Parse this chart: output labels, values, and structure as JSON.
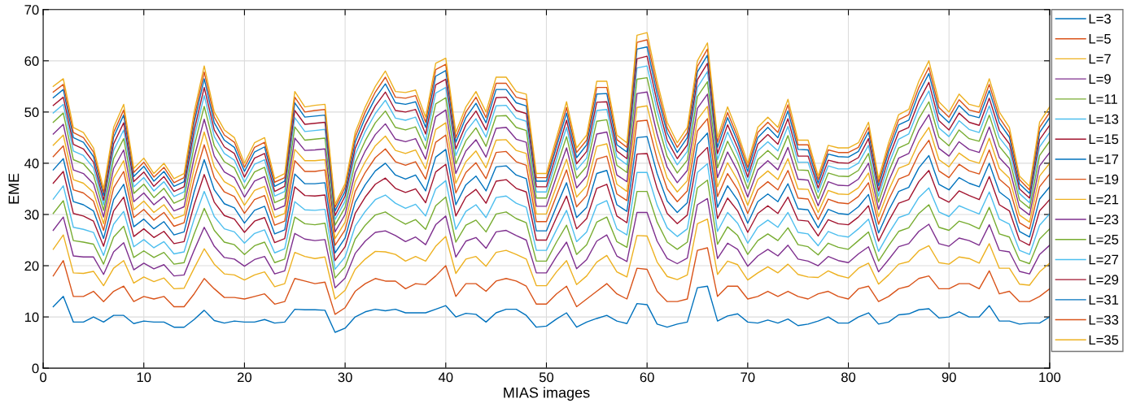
{
  "chart_data": {
    "type": "line",
    "xlabel": "MIAS images",
    "ylabel": "EME",
    "x": [
      1,
      2,
      3,
      4,
      5,
      6,
      7,
      8,
      9,
      10,
      11,
      12,
      13,
      14,
      15,
      16,
      17,
      18,
      19,
      20,
      21,
      22,
      23,
      24,
      25,
      26,
      27,
      28,
      29,
      30,
      31,
      32,
      33,
      34,
      35,
      36,
      37,
      38,
      39,
      40,
      41,
      42,
      43,
      44,
      45,
      46,
      47,
      48,
      49,
      50,
      51,
      52,
      53,
      54,
      55,
      56,
      57,
      58,
      59,
      60,
      61,
      62,
      63,
      64,
      65,
      66,
      67,
      68,
      69,
      70,
      71,
      72,
      73,
      74,
      75,
      76,
      77,
      78,
      79,
      80,
      81,
      82,
      83,
      84,
      85,
      86,
      87,
      88,
      89,
      90,
      91,
      92,
      93,
      94,
      95,
      96,
      97,
      98,
      99,
      100
    ],
    "xlim": [
      0,
      100
    ],
    "xticks": [
      0,
      10,
      20,
      30,
      40,
      50,
      60,
      70,
      80,
      90,
      100
    ],
    "ylim": [
      0,
      70
    ],
    "yticks": [
      0,
      10,
      20,
      30,
      40,
      50,
      60,
      70
    ],
    "grid": true,
    "legend": "right",
    "marker": "none",
    "line_style": "solid",
    "series": [
      {
        "name": "L=3",
        "color": "#0072bd",
        "values": [
          12,
          14,
          9,
          9,
          10,
          9,
          10.3,
          10.3,
          8.7,
          9.2,
          9,
          9,
          8,
          8,
          9.5,
          11.3,
          9.3,
          8.8,
          9.2,
          9,
          9,
          9.5,
          8.8,
          9,
          11.5,
          11.4,
          11.4,
          11.3,
          7,
          7.8,
          10,
          11,
          11.5,
          11.2,
          11.5,
          10.8,
          10.8,
          10.8,
          11.5,
          12.2,
          10,
          10.7,
          10.5,
          9,
          10.8,
          11.5,
          11.5,
          10.3,
          8,
          8.2,
          9.6,
          10.8,
          8,
          9,
          9.7,
          10.3,
          9.2,
          8.7,
          12.6,
          12.4,
          8.6,
          8,
          8.6,
          9,
          15.7,
          16,
          9.2,
          10.2,
          10.6,
          9,
          8.8,
          9.4,
          8.8,
          9.6,
          8.3,
          8.6,
          9.2,
          10,
          8.8,
          8.8,
          10,
          10.8,
          8.6,
          9,
          10.4,
          10.6,
          11.4,
          11.6,
          9.8,
          10,
          11,
          10,
          10,
          12.2,
          9.2,
          9.2,
          8.6,
          8.8,
          8.8,
          10
        ]
      },
      {
        "name": "L=5",
        "color": "#d95319",
        "values": [
          18,
          21,
          14,
          14,
          15,
          13,
          15,
          16,
          13,
          14,
          13.5,
          14,
          12,
          12,
          14.5,
          17.5,
          15.5,
          13.8,
          13.8,
          13.5,
          14,
          14.5,
          12.5,
          13,
          17.5,
          17,
          16.5,
          16.8,
          10.5,
          11.8,
          15,
          16.5,
          17.5,
          17,
          17,
          15.5,
          16.5,
          16.3,
          18,
          20,
          14,
          16.5,
          16.5,
          15,
          17,
          17.5,
          17,
          16,
          12.5,
          12.5,
          14.5,
          16,
          12,
          13.5,
          15,
          16.5,
          14.5,
          13.5,
          19.5,
          19.3,
          15,
          13,
          13,
          13.5,
          23,
          23.5,
          14,
          16,
          16,
          13.5,
          14,
          15,
          14,
          15,
          14,
          13.5,
          14.5,
          15,
          14,
          13.5,
          15.5,
          16,
          13,
          14,
          15.5,
          16,
          17.5,
          18,
          15.5,
          15.5,
          16.5,
          16.5,
          15.5,
          19,
          14.5,
          15,
          13,
          13,
          14,
          15.5
        ]
      },
      {
        "name": "L=7",
        "color": "#edb120",
        "values": [
          23.2,
          26,
          18.6,
          18.5,
          18.9,
          16.1,
          19.5,
          21,
          16.6,
          17.8,
          16.9,
          17.6,
          15.5,
          15.6,
          19.5,
          23.3,
          20.3,
          18.4,
          18.2,
          17.2,
          18.2,
          18.8,
          15.9,
          16.5,
          22.6,
          21.8,
          21.4,
          21.7,
          13.5,
          15.2,
          19.3,
          21.3,
          22.8,
          22.7,
          22.2,
          20.9,
          21.8,
          20.9,
          23.8,
          25.7,
          18.5,
          21.3,
          21.8,
          19.9,
          22.6,
          23,
          22.2,
          21.3,
          16.1,
          16.1,
          18.8,
          21,
          16.3,
          18,
          20.7,
          22,
          18.8,
          17.8,
          25.9,
          25.8,
          20.7,
          17.9,
          17.3,
          18.2,
          28.2,
          29.1,
          18.3,
          20.9,
          20.2,
          17.2,
          18.6,
          19.8,
          18.6,
          20.3,
          18.3,
          17.8,
          17.7,
          19,
          18.1,
          17.6,
          19.5,
          20.5,
          16.4,
          18.2,
          20.3,
          20.8,
          22.9,
          23.9,
          20.6,
          20.3,
          21.7,
          21.4,
          20.5,
          24.3,
          19.5,
          19.5,
          16.4,
          16.2,
          18.8,
          20.5
        ]
      },
      {
        "name": "L=9",
        "color": "#7e2f8e",
        "values": [
          26.9,
          29.5,
          21.9,
          21.7,
          21.7,
          18.3,
          22.7,
          24.5,
          19.2,
          20.5,
          19.4,
          20.2,
          18,
          18.2,
          23,
          27.5,
          23.8,
          21.6,
          21.3,
          19.9,
          21.2,
          21.8,
          18.4,
          19,
          26.3,
          25.2,
          24.9,
          25.1,
          15.7,
          17.6,
          22.4,
          24.8,
          26.5,
          26.8,
          25.9,
          24.7,
          25.6,
          24.1,
          28,
          29.7,
          21.7,
          24.8,
          25.5,
          23.4,
          26.6,
          26.9,
          25.9,
          25,
          18.6,
          18.6,
          21.8,
          24.6,
          19.4,
          21.2,
          24.8,
          26,
          21.9,
          20.8,
          30.4,
          30.4,
          24.8,
          21.4,
          20.4,
          21.5,
          31.9,
          33.1,
          21.4,
          24.4,
          23.2,
          19.9,
          21.9,
          23.2,
          21.9,
          24,
          21.3,
          20.9,
          20,
          21.8,
          21,
          20.6,
          22.3,
          23.7,
          18.8,
          21.2,
          23.7,
          24.3,
          26.7,
          28.1,
          24.3,
          23.8,
          25.4,
          24.9,
          24,
          28,
          23,
          22.7,
          18.9,
          18.4,
          22.2,
          24
        ]
      },
      {
        "name": "L=11",
        "color": "#77ac30",
        "values": [
          30.2,
          32.7,
          24.9,
          24.6,
          24.2,
          20.3,
          25.6,
          27.7,
          21.6,
          22.9,
          21.6,
          22.6,
          20.3,
          20.6,
          26.2,
          31.2,
          26.9,
          24.6,
          24.1,
          22.2,
          23.9,
          24.6,
          20.6,
          21.3,
          29.5,
          28.2,
          28,
          28.3,
          17.6,
          19.8,
          25.2,
          27.9,
          29.9,
          30.5,
          29.2,
          28.1,
          29,
          27.1,
          31.7,
          33.4,
          24.6,
          27.9,
          28.9,
          26.6,
          30.1,
          30.5,
          29.2,
          28.4,
          20.9,
          20.9,
          24.6,
          27.9,
          22.2,
          24.1,
          28.5,
          29.5,
          24.7,
          23.6,
          34.5,
          34.5,
          28.5,
          24.6,
          23.2,
          24.6,
          35.2,
          36.7,
          24.2,
          27.6,
          25.9,
          22.2,
          24.9,
          26.2,
          24.9,
          27.4,
          24.1,
          23.7,
          22.1,
          24.4,
          23.6,
          23.2,
          24.9,
          26.6,
          20.9,
          23.9,
          26.7,
          27.4,
          30.2,
          31.9,
          27.5,
          26.9,
          28.7,
          28.1,
          27.2,
          31.4,
          26.2,
          25.6,
          21.1,
          20.4,
          25.2,
          27.2
        ]
      },
      {
        "name": "L=13",
        "color": "#4dbeee",
        "values": [
          33,
          35.6,
          27.5,
          27.1,
          26.5,
          22,
          28.1,
          30.6,
          23.7,
          25.1,
          23.5,
          24.7,
          22.3,
          22.7,
          29.1,
          34.5,
          29.6,
          27.2,
          26.6,
          24.4,
          26.3,
          27,
          22.5,
          23.3,
          32.5,
          30.9,
          30.8,
          31,
          19.3,
          21.7,
          27.7,
          30.6,
          32.9,
          33.8,
          32.2,
          31.2,
          32,
          29.7,
          35,
          36.6,
          27.1,
          30.6,
          31.9,
          29.4,
          33.3,
          33.6,
          32.2,
          31.4,
          23,
          23,
          27,
          30.8,
          24.7,
          26.6,
          31.8,
          32.7,
          27.2,
          26,
          38.2,
          38.2,
          31.8,
          27.4,
          25.7,
          27.2,
          38.2,
          39.9,
          26.7,
          30.4,
          28.3,
          24.4,
          27.5,
          28.9,
          27.5,
          30.4,
          26.5,
          26.2,
          23.9,
          26.7,
          25.9,
          25.6,
          27.2,
          29.1,
          22.8,
          26.3,
          29.4,
          30.1,
          33.3,
          35.2,
          30.5,
          29.6,
          31.7,
          30.9,
          30.1,
          34.4,
          29.1,
          28.1,
          23,
          22.2,
          27.9,
          30.1
        ]
      },
      {
        "name": "L=15",
        "color": "#a2142f",
        "values": [
          36.1,
          38.4,
          30.2,
          29.7,
          28.7,
          23.8,
          30.7,
          33.4,
          25.7,
          27.2,
          25.5,
          26.7,
          24.3,
          24.7,
          31.9,
          37.8,
          32.4,
          29.8,
          29.1,
          26.5,
          28.7,
          29.4,
          24.5,
          25.3,
          35.4,
          33.7,
          33.6,
          33.8,
          21,
          23.7,
          30.2,
          33.4,
          35.9,
          37.1,
          35.1,
          34.3,
          35,
          32.3,
          38.3,
          39.8,
          29.7,
          33.4,
          34.9,
          32.2,
          36.5,
          36.8,
          35.1,
          34.4,
          25,
          25,
          29.4,
          33.6,
          27.2,
          29.2,
          35.1,
          35.9,
          29.7,
          28.4,
          41.8,
          41.9,
          35.1,
          30.2,
          28.2,
          29.9,
          41.1,
          43.1,
          29.2,
          33.2,
          30.7,
          26.5,
          30.2,
          31.7,
          30.2,
          33.4,
          28.9,
          28.7,
          25.8,
          29,
          28.2,
          28,
          29.5,
          31.7,
          24.8,
          28.7,
          32.2,
          32.9,
          36.4,
          38.6,
          33.4,
          32.4,
          34.6,
          33.7,
          32.9,
          37.4,
          31.9,
          30.7,
          25,
          24,
          30.7,
          32.9
        ]
      },
      {
        "name": "L=17",
        "color": "#0072bd",
        "values": [
          38.7,
          40.9,
          32.5,
          31.9,
          30.7,
          25.3,
          32.9,
          35.9,
          27.6,
          29.1,
          27.2,
          28.6,
          26,
          26.6,
          34.4,
          40.7,
          34.8,
          32.1,
          31.3,
          28.3,
          30.8,
          31.6,
          26.2,
          27,
          37.9,
          36,
          36,
          36.2,
          22.5,
          25.4,
          32.4,
          35.8,
          38.5,
          40,
          37.7,
          36.9,
          37.7,
          34.6,
          41.2,
          42.7,
          31.9,
          35.8,
          37.5,
          34.6,
          39.3,
          39.5,
          37.7,
          37,
          26.8,
          26.8,
          31.6,
          36.2,
          29.4,
          31.4,
          38,
          38.6,
          31.9,
          30.6,
          45,
          45.2,
          38,
          32.6,
          30.4,
          32.3,
          43.7,
          45.9,
          31.4,
          35.6,
          32.8,
          28.3,
          32.5,
          34,
          32.5,
          36,
          31.1,
          30.9,
          27.4,
          31,
          30.2,
          30,
          31.5,
          33.9,
          26.4,
          30.8,
          34.5,
          35.3,
          39.1,
          41.5,
          35.9,
          34.8,
          37.2,
          36.1,
          35.4,
          40,
          34.4,
          32.9,
          26.7,
          25.6,
          33,
          35.4
        ]
      },
      {
        "name": "L=19",
        "color": "#d95319",
        "values": [
          41.3,
          43.4,
          34.8,
          34.2,
          32.6,
          26.9,
          35.2,
          38.4,
          29.4,
          31,
          28.9,
          30.4,
          27.7,
          28.4,
          36.9,
          43.6,
          37.2,
          34.4,
          33.5,
          30.2,
          32.9,
          33.7,
          27.9,
          28.7,
          40.5,
          38.4,
          38.4,
          38.7,
          24,
          27,
          34.5,
          38.2,
          41.1,
          42.8,
          40.3,
          39.6,
          40.3,
          36.9,
          44.1,
          45.5,
          34.2,
          38.2,
          40.1,
          37,
          42.1,
          42.3,
          40.3,
          39.6,
          28.6,
          28.6,
          33.7,
          38.7,
          31.5,
          33.7,
          40.8,
          41.4,
          34,
          32.7,
          48.2,
          48.4,
          40.8,
          35,
          32.5,
          34.6,
          46.3,
          48.7,
          33.5,
          38,
          34.9,
          30.2,
          34.8,
          36.4,
          34.8,
          38.6,
          33.2,
          33,
          29,
          33,
          32.3,
          32.1,
          33.5,
          36.2,
          28.1,
          32.9,
          36.9,
          37.7,
          41.8,
          44.5,
          38.5,
          37.2,
          39.8,
          38.5,
          37.9,
          42.6,
          36.9,
          35.2,
          28.4,
          27.2,
          35.4,
          37.9
        ]
      },
      {
        "name": "L=21",
        "color": "#edb120",
        "values": [
          43.5,
          45.5,
          36.8,
          36.1,
          34.3,
          28.2,
          37.1,
          40.5,
          30.9,
          32.6,
          30.4,
          31.9,
          29.2,
          29.9,
          39,
          46.1,
          39.3,
          36.4,
          35.3,
          31.8,
          34.7,
          35.5,
          29.4,
          30.2,
          42.7,
          40.5,
          40.5,
          40.7,
          25.3,
          28.5,
          36.4,
          40.3,
          43.4,
          45.3,
          42.5,
          41.9,
          42.6,
          38.9,
          46.6,
          47.9,
          36.1,
          40.3,
          42.4,
          39.1,
          44.5,
          44.6,
          42.5,
          41.9,
          30.1,
          30.1,
          35.5,
          40.8,
          33.4,
          35.6,
          43.3,
          43.8,
          35.9,
          34.5,
          50.9,
          51.2,
          43.3,
          37.1,
          34.4,
          36.6,
          48.5,
          51.1,
          35.4,
          40.1,
          36.7,
          31.8,
          36.8,
          38.5,
          36.8,
          40.9,
          35,
          34.9,
          30.4,
          34.7,
          34,
          33.9,
          35.2,
          38.1,
          29.6,
          34.7,
          39,
          39.8,
          44.1,
          47,
          40.7,
          39.3,
          42,
          40.6,
          40,
          44.9,
          39,
          37.1,
          29.9,
          28.5,
          37.5,
          40
        ]
      },
      {
        "name": "L=23",
        "color": "#7e2f8e",
        "values": [
          45.7,
          47.6,
          38.7,
          38,
          36,
          29.5,
          39,
          42.6,
          32.5,
          34.2,
          31.9,
          33.5,
          30.7,
          31.5,
          41.1,
          48.6,
          41.4,
          38.3,
          37.2,
          33.4,
          36.5,
          37.4,
          30.9,
          31.7,
          44.9,
          42.5,
          42.6,
          42.8,
          26.6,
          30,
          38.2,
          42.4,
          45.6,
          47.7,
          44.7,
          44.2,
          44.8,
          40.8,
          49.1,
          50.4,
          38,
          42.4,
          44.6,
          41.2,
          46.8,
          47,
          44.7,
          44.1,
          31.6,
          31.6,
          37.4,
          43,
          35.2,
          37.5,
          45.7,
          46.1,
          37.7,
          36.4,
          53.6,
          53.9,
          45.7,
          39.2,
          36.2,
          38.6,
          50.7,
          53.5,
          37.2,
          42.2,
          38.5,
          33.4,
          38.7,
          40.5,
          38.7,
          43.1,
          36.9,
          36.7,
          31.7,
          36.4,
          35.7,
          35.6,
          36.9,
          40,
          31,
          36.5,
          41,
          41.9,
          46.4,
          49.5,
          42.9,
          41.4,
          44.2,
          42.7,
          42.1,
          47.1,
          41.1,
          39,
          31.4,
          29.9,
          39.5,
          42.1
        ]
      },
      {
        "name": "L=25",
        "color": "#77ac30",
        "values": [
          48,
          49.8,
          40.7,
          39.9,
          37.7,
          30.8,
          40.9,
          44.8,
          34.1,
          35.9,
          33.3,
          35.1,
          32.2,
          33.1,
          43.3,
          51.1,
          43.4,
          40.3,
          39.1,
          35,
          38.3,
          39.2,
          32.3,
          33.2,
          47.1,
          44.5,
          44.7,
          44.9,
          27.9,
          31.4,
          40.1,
          44.4,
          47.9,
          50.2,
          47,
          46.5,
          47.1,
          42.8,
          51.6,
          52.8,
          39.9,
          44.4,
          46.9,
          43.3,
          49.2,
          49.3,
          47,
          46.4,
          33.2,
          33.2,
          39.2,
          45.2,
          37.1,
          39.4,
          48.2,
          48.5,
          39.6,
          38.2,
          56.4,
          56.7,
          48.2,
          41.3,
          38.1,
          40.6,
          53,
          55.9,
          39.1,
          44.3,
          40.3,
          35,
          40.7,
          42.5,
          40.7,
          45.4,
          38.7,
          38.6,
          33.1,
          38.1,
          37.5,
          37.4,
          38.6,
          41.9,
          32.4,
          38.3,
          43,
          43.9,
          48.7,
          52,
          45.1,
          43.4,
          46.5,
          44.8,
          44.3,
          49.4,
          43.3,
          40.9,
          32.8,
          31.2,
          41.5,
          44.3
        ]
      },
      {
        "name": "L=27",
        "color": "#4dbeee",
        "values": [
          49.8,
          51.5,
          42.4,
          41.5,
          39.1,
          31.9,
          42.5,
          46.5,
          35.4,
          37.2,
          34.6,
          36.4,
          33.5,
          34.4,
          45,
          53.2,
          45.2,
          41.9,
          40.6,
          36.3,
          39.8,
          40.7,
          33.6,
          34.5,
          48.9,
          46.2,
          46.4,
          46.6,
          29,
          32.6,
          41.7,
          46.2,
          49.7,
          52.3,
          48.8,
          48.4,
          49,
          44.4,
          53.7,
          54.8,
          41.5,
          46.2,
          48.7,
          45.1,
          51.2,
          51.3,
          48.8,
          48.2,
          34.4,
          34.4,
          40.7,
          47,
          38.7,
          41,
          50.3,
          50.5,
          41.2,
          39.7,
          58.6,
          59,
          50.3,
          43.1,
          39.7,
          42.3,
          54.8,
          57.9,
          40.7,
          46.1,
          41.8,
          36.3,
          42.4,
          44.2,
          42.4,
          47.2,
          40.2,
          40.2,
          34.3,
          39.5,
          38.9,
          38.9,
          40,
          43.5,
          33.6,
          39.8,
          44.7,
          45.7,
          50.6,
          54.1,
          46.9,
          45.2,
          48.3,
          46.6,
          46,
          51.2,
          45,
          42.5,
          34.1,
          32.3,
          43.2,
          46
        ]
      },
      {
        "name": "L=29",
        "color": "#a2142f",
        "values": [
          51.3,
          52.9,
          43.7,
          42.8,
          40.2,
          32.8,
          43.8,
          47.9,
          36.4,
          38.3,
          35.5,
          37.4,
          34.5,
          35.4,
          46.4,
          54.8,
          46.5,
          43.2,
          41.9,
          37.3,
          41,
          41.9,
          34.5,
          35.5,
          50.3,
          47.6,
          47.8,
          48,
          29.8,
          33.6,
          42.9,
          47.5,
          51.2,
          53.9,
          50.3,
          50,
          50.5,
          45.7,
          55.3,
          56.4,
          42.8,
          47.5,
          50.2,
          46.5,
          52.8,
          52.9,
          50.3,
          49.7,
          35.4,
          35.4,
          41.9,
          48.4,
          39.9,
          42.3,
          51.9,
          52,
          42.4,
          40.9,
          60.4,
          60.9,
          51.9,
          44.5,
          40.9,
          43.6,
          56.3,
          59.5,
          41.9,
          47.5,
          43,
          37.3,
          43.7,
          45.6,
          43.7,
          48.7,
          41.4,
          41.4,
          35.2,
          40.6,
          40.1,
          40,
          41.1,
          44.8,
          34.6,
          41,
          46.1,
          47,
          52.1,
          55.8,
          48.3,
          46.5,
          49.8,
          48,
          47.4,
          52.7,
          46.4,
          43.8,
          35,
          33.2,
          44.6,
          47.4
        ]
      },
      {
        "name": "L=31",
        "color": "#0072bd",
        "values": [
          52.8,
          54.4,
          45,
          44.1,
          41.3,
          33.7,
          45.1,
          49.4,
          37.4,
          39.4,
          36.5,
          38.4,
          35.5,
          36.4,
          47.9,
          56.5,
          47.9,
          44.5,
          43.1,
          38.4,
          42.2,
          43.2,
          35.5,
          36.5,
          51.8,
          49,
          49.2,
          49.4,
          30.7,
          34.5,
          44.1,
          48.9,
          52.7,
          55.5,
          51.8,
          51.5,
          52,
          47,
          57,
          58.1,
          44.1,
          48.9,
          51.7,
          47.9,
          54.4,
          54.4,
          51.8,
          51.2,
          36.5,
          36.5,
          43.2,
          49.8,
          41.1,
          43.6,
          53.5,
          53.6,
          43.6,
          42.2,
          62.3,
          62.7,
          53.5,
          45.9,
          42.1,
          45,
          57.8,
          61.1,
          43.1,
          48.9,
          44.2,
          38.4,
          45,
          47,
          45,
          50.2,
          42.7,
          42.6,
          36.1,
          41.8,
          41.3,
          41.2,
          42.3,
          46.1,
          35.6,
          42.2,
          47.5,
          48.4,
          53.7,
          57.5,
          49.8,
          47.9,
          51.3,
          49.4,
          48.9,
          54.2,
          47.9,
          45.1,
          36,
          34.1,
          46,
          48.9
        ]
      },
      {
        "name": "L=33",
        "color": "#d95319",
        "values": [
          53.9,
          55.4,
          46,
          45,
          42.2,
          34.3,
          46,
          50.4,
          38.2,
          40.2,
          37.3,
          39.2,
          36.2,
          37.2,
          48.9,
          57.8,
          49,
          45.5,
          44.1,
          39.2,
          43.1,
          44.1,
          36.3,
          37.2,
          52.9,
          50,
          50.3,
          50.5,
          31.4,
          35.3,
          45.1,
          50,
          53.9,
          56.8,
          52.9,
          52.7,
          53.2,
          48,
          58.3,
          59.3,
          45,
          50,
          52.9,
          48.9,
          55.6,
          55.6,
          52.9,
          52.4,
          37.2,
          37.2,
          44.1,
          50.9,
          42.1,
          44.5,
          54.8,
          54.8,
          44.6,
          43.1,
          63.6,
          64.1,
          54.8,
          46.9,
          43.1,
          46,
          58.9,
          62.3,
          44.1,
          49.9,
          45.1,
          39.2,
          46,
          48,
          46,
          51.4,
          43.6,
          43.6,
          36.8,
          42.6,
          42.1,
          42.1,
          43.1,
          47,
          36.3,
          43.1,
          48.5,
          49.5,
          54.8,
          58.7,
          50.9,
          49,
          52.4,
          50.4,
          49.9,
          55.4,
          48.9,
          46,
          36.8,
          34.8,
          47,
          49.9
        ]
      },
      {
        "name": "L=35",
        "color": "#edb120",
        "values": [
          55,
          56.5,
          47,
          46,
          43,
          35,
          47,
          51.5,
          39,
          41,
          38,
          40,
          37,
          38,
          50,
          59,
          50,
          46.5,
          45,
          40,
          44,
          45,
          37,
          38,
          54,
          51,
          51.3,
          51.5,
          32,
          36,
          46,
          51,
          55,
          58,
          54,
          53.8,
          54.3,
          49,
          59.5,
          60.5,
          46,
          51,
          54,
          50,
          56.8,
          56.8,
          54,
          53.5,
          38,
          38,
          45,
          52,
          43,
          45.5,
          56,
          56,
          45.5,
          44,
          65,
          65.5,
          56,
          48,
          44,
          47,
          60,
          63.5,
          45,
          51,
          46,
          40,
          47,
          49,
          47,
          52.5,
          44.5,
          44.5,
          37.5,
          43.5,
          43,
          43,
          44,
          48,
          37,
          44,
          49.5,
          50.5,
          56,
          60,
          52,
          50,
          53.5,
          51.5,
          51,
          56.5,
          50,
          47,
          37.5,
          35.5,
          48,
          51
        ]
      }
    ]
  }
}
